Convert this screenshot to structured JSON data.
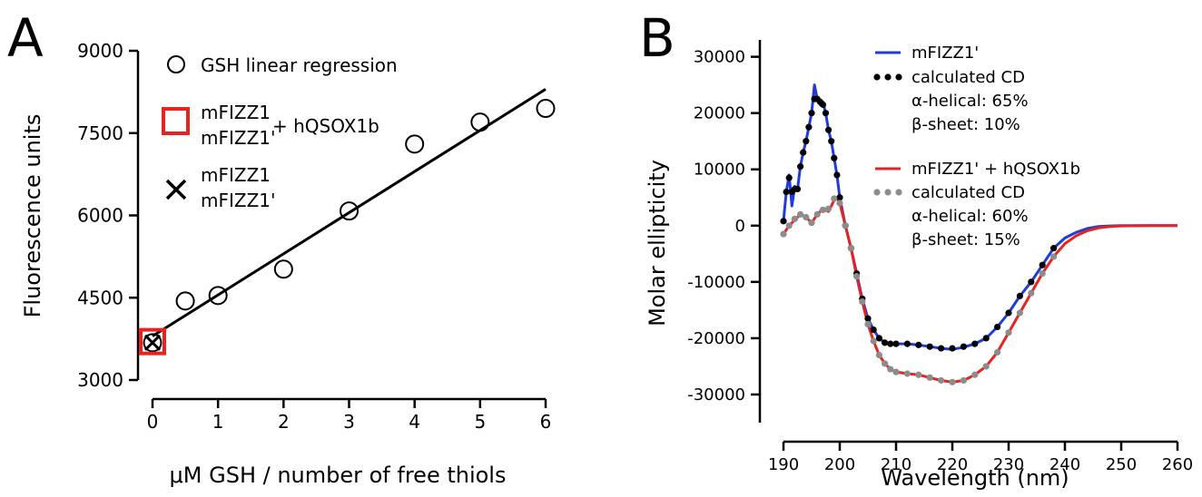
{
  "panels": {
    "a": {
      "letter": "A"
    },
    "b": {
      "letter": "B"
    }
  },
  "chart_data": [
    {
      "panel": "A",
      "type": "scatter",
      "xlabel": "μM GSH / number of free thiols",
      "ylabel": "Fluorescence units",
      "xlim": [
        0,
        6
      ],
      "ylim": [
        3000,
        9000
      ],
      "xticks": [
        0,
        1,
        2,
        3,
        4,
        5,
        6
      ],
      "yticks": [
        3000,
        4500,
        6000,
        7500,
        9000
      ],
      "series": [
        {
          "name": "GSH linear regression",
          "marker": "open-circle",
          "points": [
            [
              0,
              3680
            ],
            [
              0.5,
              4440
            ],
            [
              1,
              4540
            ],
            [
              2,
              5020
            ],
            [
              3,
              6080
            ],
            [
              4,
              7300
            ],
            [
              5,
              7700
            ],
            [
              6,
              7950
            ]
          ]
        },
        {
          "name": "mFIZZ1 mFIZZ1' + hQSOX1b",
          "marker": "red-square",
          "color": "#e8231f",
          "points": [
            [
              0,
              3700
            ]
          ]
        },
        {
          "name": "mFIZZ1 mFIZZ1'",
          "marker": "x",
          "points": [
            [
              0,
              3680
            ]
          ]
        }
      ],
      "fit_line": {
        "x": [
          0,
          6
        ],
        "y": [
          3800,
          8300
        ]
      },
      "legend": {
        "entry1": "GSH linear regression",
        "entry2_line1": "mFIZZ1",
        "entry2_line2": "mFIZZ1'",
        "entry2_suffix": "+ hQSOX1b",
        "entry3_line1": "mFIZZ1",
        "entry3_line2": "mFIZZ1'"
      }
    },
    {
      "panel": "B",
      "type": "line",
      "xlabel": "Wavelength (nm)",
      "ylabel": "Molar ellipticity",
      "xlim": [
        190,
        260
      ],
      "ylim": [
        -35000,
        33000
      ],
      "xticks": [
        190,
        200,
        210,
        220,
        230,
        240,
        250,
        260
      ],
      "yticks": [
        30000,
        20000,
        10000,
        0,
        -10000,
        -20000,
        -30000
      ],
      "series": [
        {
          "name": "mFIZZ1'",
          "color": "#1f3bd9",
          "x": [
            190,
            190.5,
            191,
            191.5,
            192,
            192.5,
            193,
            193.5,
            194,
            194.5,
            195,
            195.5,
            196,
            196.5,
            197,
            197.5,
            198,
            198.5,
            199,
            199.5,
            200,
            201,
            202,
            203,
            204,
            205,
            206,
            207,
            208,
            209,
            210,
            212,
            214,
            216,
            218,
            220,
            222,
            224,
            226,
            228,
            230,
            232,
            234,
            236,
            238,
            240,
            242,
            244,
            246,
            248,
            250,
            255,
            260
          ],
          "y": [
            800,
            6000,
            9000,
            3500,
            7000,
            6500,
            10500,
            13000,
            15000,
            17500,
            20000,
            25000,
            22500,
            21500,
            22000,
            20000,
            17000,
            15000,
            12000,
            9000,
            5000,
            0,
            -4000,
            -8500,
            -13000,
            -16500,
            -18500,
            -20000,
            -20800,
            -21000,
            -21000,
            -21000,
            -21200,
            -21500,
            -21800,
            -22000,
            -21600,
            -21000,
            -20000,
            -18000,
            -15500,
            -12500,
            -10000,
            -7000,
            -4000,
            -2200,
            -1200,
            -500,
            -150,
            -50,
            0,
            0,
            0
          ]
        },
        {
          "name": "calculated CD",
          "marker": "dots",
          "color": "#000000",
          "x": [
            190,
            190.5,
            191,
            191.5,
            192,
            192.5,
            193,
            193.5,
            194,
            194.5,
            195,
            195.5,
            196,
            196.5,
            197,
            197.5,
            198,
            198.5,
            199,
            199.5,
            200,
            201,
            202,
            203,
            204,
            205,
            206,
            207,
            208,
            209,
            210,
            212,
            214,
            216,
            218,
            220,
            222,
            224,
            226,
            228,
            230,
            232,
            234,
            236,
            238
          ],
          "y": [
            800,
            6000,
            8500,
            6000,
            6500,
            6500,
            10500,
            13000,
            15000,
            17500,
            20000,
            22500,
            22500,
            22000,
            21500,
            20000,
            17000,
            15000,
            12000,
            9000,
            5000,
            0,
            -4000,
            -8500,
            -13000,
            -16500,
            -18500,
            -20000,
            -20800,
            -21000,
            -21000,
            -21000,
            -21200,
            -21500,
            -21800,
            -21800,
            -21500,
            -21000,
            -20000,
            -18000,
            -15500,
            -12500,
            -10000,
            -7000,
            -4000
          ]
        },
        {
          "name": "mFIZZ1' + hQSOX1b",
          "color": "#e8231f",
          "x": [
            190,
            191,
            192,
            193,
            194,
            195,
            196,
            197,
            198,
            199,
            199.5,
            200,
            201,
            202,
            203,
            204,
            205,
            206,
            207,
            208,
            209,
            210,
            212,
            214,
            216,
            218,
            220,
            222,
            224,
            226,
            228,
            230,
            232,
            234,
            236,
            238,
            240,
            242,
            244,
            246,
            248,
            250,
            255,
            260
          ],
          "y": [
            -1500,
            0,
            1000,
            2000,
            1500,
            500,
            2000,
            3000,
            2500,
            4500,
            5000,
            4000,
            0,
            -4000,
            -9000,
            -13500,
            -17500,
            -20500,
            -23000,
            -24500,
            -25500,
            -26000,
            -26300,
            -26500,
            -27000,
            -27500,
            -27800,
            -27500,
            -26500,
            -25000,
            -22500,
            -19000,
            -15500,
            -12000,
            -8500,
            -5500,
            -3200,
            -1800,
            -900,
            -400,
            -150,
            -50,
            0,
            0
          ]
        },
        {
          "name": "calculated CD",
          "marker": "dots",
          "color": "#8c8c8c",
          "x": [
            190,
            191,
            192,
            193,
            194,
            195,
            196,
            197,
            198,
            199,
            200,
            201,
            202,
            203,
            204,
            205,
            206,
            207,
            208,
            209,
            210,
            212,
            214,
            216,
            218,
            220,
            222,
            224,
            226,
            228,
            230,
            232,
            234,
            236,
            238
          ],
          "y": [
            -1500,
            0,
            1200,
            2000,
            1500,
            500,
            2000,
            2800,
            3000,
            4800,
            4000,
            0,
            -4000,
            -9000,
            -13500,
            -17500,
            -20500,
            -23000,
            -24500,
            -25500,
            -26000,
            -26300,
            -26500,
            -27000,
            -27500,
            -27800,
            -27500,
            -26500,
            -25000,
            -22500,
            -19000,
            -15500,
            -12000,
            -8500,
            -5500
          ]
        }
      ],
      "legend": {
        "entry1": "mFIZZ1'",
        "entry1_dots": "calculated CD",
        "entry1_alpha": "α-helical: 65%",
        "entry1_beta": "β-sheet: 10%",
        "entry2": "mFIZZ1' + hQSOX1b",
        "entry2_dots": "calculated CD",
        "entry2_alpha": "α-helical: 60%",
        "entry2_beta": "β-sheet: 15%"
      }
    }
  ]
}
